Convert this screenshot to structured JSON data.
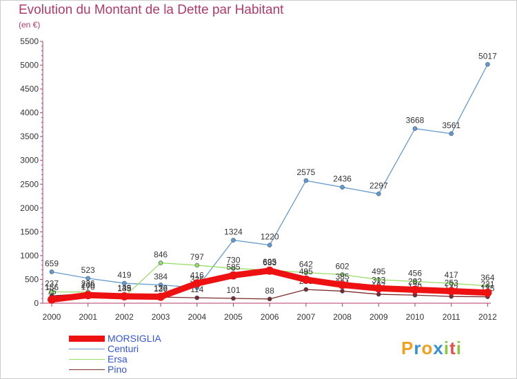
{
  "title": "Evolution du Montant de la Dette par Habitant",
  "unit": "(en €)",
  "logo": {
    "letters": [
      "P",
      "r",
      "o",
      "x",
      "i",
      "t",
      "i"
    ],
    "colors": [
      "#f0a020",
      "#3a8fd0",
      "#f0a020",
      "#3a8fd0",
      "#8cc63f",
      "#e05050",
      "#8cc63f"
    ]
  },
  "chart_data": {
    "type": "line",
    "x": [
      "2000",
      "2001",
      "2002",
      "2003",
      "2004",
      "2005",
      "2006",
      "2007",
      "2008",
      "2009",
      "2010",
      "2011",
      "2012"
    ],
    "ylim": [
      0,
      5500
    ],
    "yticks": [
      0,
      500,
      1000,
      1500,
      2000,
      2500,
      3000,
      3500,
      4000,
      4500,
      5000,
      5500
    ],
    "grid": false,
    "legend_position": "bottom-left",
    "series": [
      {
        "name": "Centuri",
        "color": "#6699cc",
        "values": [
          659,
          523,
          419,
          384,
          326,
          1324,
          1220,
          2575,
          2436,
          2297,
          3668,
          3561,
          5017
        ]
      },
      {
        "name": "Ersa",
        "color": "#99dd66",
        "values": [
          237,
          236,
          135,
          846,
          797,
          730,
          695,
          642,
          602,
          495,
          456,
          417,
          364
        ]
      },
      {
        "name": "Pino",
        "color": "#7a2a2a",
        "values": [
          156,
          200,
          139,
          129,
          114,
          101,
          88,
          288,
          254,
          187,
          170,
          142,
          135
        ]
      },
      {
        "name": "MORSIGLIA",
        "color": "#ee1111",
        "values": [
          75,
          170,
          145,
          136,
          416,
          585,
          683,
          495,
          385,
          313,
          282,
          253,
          221
        ]
      }
    ],
    "legend": [
      {
        "name": "MORSIGLIA",
        "color": "#ee1111",
        "thick": true,
        "text_color": "#3355dd"
      },
      {
        "name": "Centuri",
        "color": "#6699cc",
        "thick": false,
        "text_color": "#3355dd"
      },
      {
        "name": "Ersa",
        "color": "#99dd66",
        "thick": false,
        "text_color": "#3355dd"
      },
      {
        "name": "Pino",
        "color": "#7a2a2a",
        "thick": false,
        "text_color": "#3355dd"
      }
    ]
  }
}
